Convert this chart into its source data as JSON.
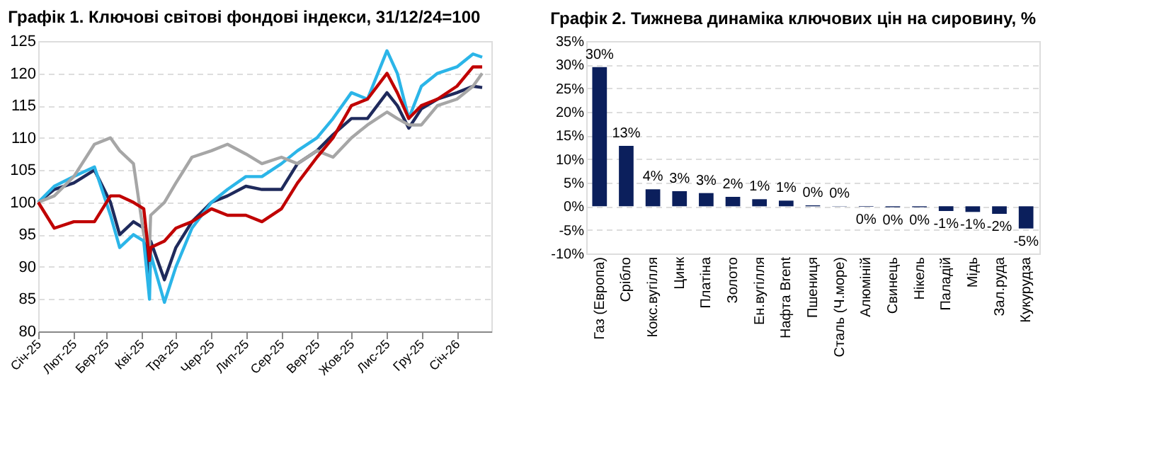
{
  "chart_data": [
    {
      "type": "line",
      "title": "Графік 1. Ключові світові фондові індекси, 31/12/24=100",
      "x": [
        "2025-01-01",
        "2025-01-15",
        "2025-02-01",
        "2025-02-19",
        "2025-03-05",
        "2025-03-13",
        "2025-03-25",
        "2025-04-03",
        "2025-04-08",
        "2025-04-09",
        "2025-04-21",
        "2025-05-01",
        "2025-05-15",
        "2025-06-01",
        "2025-06-15",
        "2025-07-01",
        "2025-07-15",
        "2025-08-01",
        "2025-08-15",
        "2025-09-01",
        "2025-09-15",
        "2025-10-01",
        "2025-10-15",
        "2025-11-01",
        "2025-11-10",
        "2025-11-20",
        "2025-12-01",
        "2025-12-15",
        "2026-01-01",
        "2026-01-15",
        "2026-01-23"
      ],
      "series": [
        {
          "color": "#1f2a5c",
          "values": [
            100,
            102,
            103,
            105,
            100,
            95,
            97,
            96,
            88.5,
            94,
            88,
            93,
            97,
            100,
            101,
            102.5,
            102,
            102,
            106,
            108,
            110.5,
            113,
            113,
            117,
            115,
            111.5,
            114.5,
            116,
            117,
            118,
            117.8
          ]
        },
        {
          "color": "#2bb5e8",
          "values": [
            100,
            102.5,
            104,
            105.5,
            98,
            93,
            95,
            94,
            85,
            92,
            84.5,
            90,
            96,
            100,
            102,
            104,
            104,
            106,
            108,
            110,
            113,
            117,
            116,
            123.5,
            120,
            113,
            118,
            120,
            121,
            123,
            122.5
          ]
        },
        {
          "color": "#a6a6a6",
          "values": [
            100,
            101,
            104,
            109,
            110,
            108,
            106,
            95,
            93,
            98,
            100,
            103,
            107,
            108,
            109,
            107.5,
            106,
            107,
            106,
            108,
            107,
            110,
            112,
            114,
            113,
            112,
            112,
            115,
            116,
            118,
            120
          ]
        },
        {
          "color": "#c00000",
          "values": [
            100,
            96,
            97,
            97,
            101,
            101,
            100,
            99,
            91,
            93,
            94,
            96,
            97,
            99,
            98,
            98,
            97,
            99,
            103,
            107,
            110,
            115,
            116,
            120,
            117,
            113,
            115,
            116,
            118,
            121,
            121
          ]
        }
      ],
      "xlim": [
        "2025-01-01",
        "2026-01-31"
      ],
      "xticks": [
        {
          "value": "2025-01",
          "label": "Січ-25"
        },
        {
          "value": "2025-02",
          "label": "Лют-25"
        },
        {
          "value": "2025-03",
          "label": "Бер-25"
        },
        {
          "value": "2025-04",
          "label": "Кві-25"
        },
        {
          "value": "2025-05",
          "label": "Тра-25"
        },
        {
          "value": "2025-06",
          "label": "Чер-25"
        },
        {
          "value": "2025-07",
          "label": "Лип-25"
        },
        {
          "value": "2025-08",
          "label": "Сер-25"
        },
        {
          "value": "2025-09",
          "label": "Вер-25"
        },
        {
          "value": "2025-10",
          "label": "Жов-25"
        },
        {
          "value": "2025-11",
          "label": "Лис-25"
        },
        {
          "value": "2025-12",
          "label": "Гру-25"
        },
        {
          "value": "2026-01",
          "label": "Січ-26"
        }
      ],
      "ylim": [
        80,
        125
      ],
      "yticks": [
        80,
        85,
        90,
        95,
        100,
        105,
        110,
        115,
        120,
        125
      ],
      "grid": "y",
      "legend": false,
      "line_style": "solid"
    },
    {
      "type": "bar",
      "title": "Графік 2. Тижнева динаміка ключових цін на сировину, %",
      "categories": [
        "Газ (Европа)",
        "Срібло",
        "Кокс.вугілля",
        "Цинк",
        "Платіна",
        "Золото",
        "Ен.вугілля",
        "Нафта Brent",
        "Пшениця",
        "Сталь (Ч.море)",
        "Алюміній",
        "Свинець",
        "Нікель",
        "Паладій",
        "Мідь",
        "Зал.руда",
        "Кукурудза"
      ],
      "values": [
        29.5,
        12.8,
        3.6,
        3.2,
        2.8,
        2.0,
        1.5,
        1.2,
        0.2,
        0.05,
        -0.1,
        -0.2,
        -0.2,
        -1.0,
        -1.2,
        -1.6,
        -4.7
      ],
      "value_labels": [
        "30%",
        "13%",
        "4%",
        "3%",
        "3%",
        "2%",
        "1%",
        "1%",
        "0%",
        "0%",
        "0%",
        "0%",
        "0%",
        "-1%",
        "-1%",
        "-2%",
        "-5%"
      ],
      "color": "#0b1f5c",
      "ylim": [
        -10,
        35
      ],
      "yticks": [
        {
          "value": -10,
          "label": "-10%"
        },
        {
          "value": -5,
          "label": "-5%"
        },
        {
          "value": 0,
          "label": "0%"
        },
        {
          "value": 5,
          "label": "5%"
        },
        {
          "value": 10,
          "label": "10%"
        },
        {
          "value": 15,
          "label": "15%"
        },
        {
          "value": 20,
          "label": "20%"
        },
        {
          "value": 25,
          "label": "25%"
        },
        {
          "value": 30,
          "label": "30%"
        },
        {
          "value": 35,
          "label": "35%"
        }
      ],
      "grid": "y"
    }
  ]
}
